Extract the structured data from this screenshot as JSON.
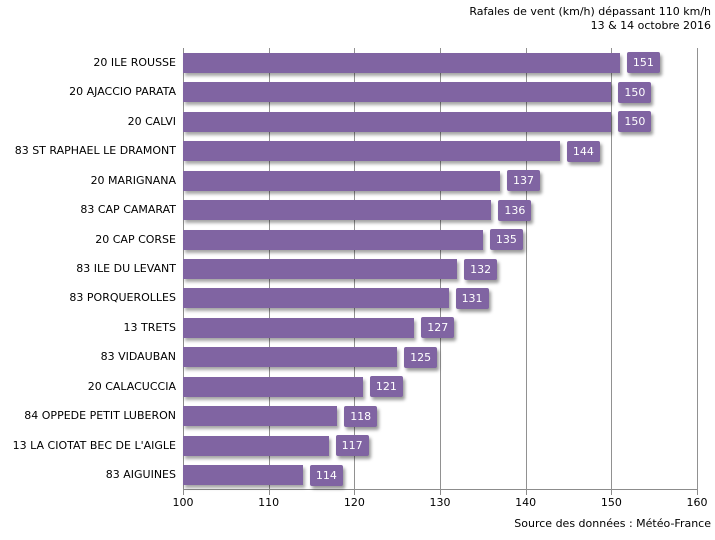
{
  "title": {
    "line1": "Rafales de vent (km/h) dépassant 110 km/h",
    "line2": "13 & 14 octobre 2016"
  },
  "source_note": "Source des données : Météo-France",
  "colors": {
    "bar": "#8064A2",
    "value_label_bg": "#8064A2",
    "value_label_text": "#FFFFFF",
    "gridline": "#919191",
    "axis_line": "#8C8C8C",
    "text": "#000000"
  },
  "chart_data": {
    "type": "bar",
    "orientation": "horizontal",
    "title": "Rafales de vent (km/h) dépassant 110 km/h",
    "subtitle": "13 & 14 octobre 2016",
    "xlabel": "",
    "ylabel": "",
    "xlim": [
      100,
      160
    ],
    "x_ticks": [
      100,
      110,
      120,
      130,
      140,
      150,
      160
    ],
    "grid": true,
    "legend": false,
    "categories": [
      "20 ILE ROUSSE",
      "20 AJACCIO PARATA",
      "20 CALVI",
      "83 ST RAPHAEL LE DRAMONT",
      "20 MARIGNANA",
      "83 CAP CAMARAT",
      "20 CAP CORSE",
      "83 ILE DU LEVANT",
      "83 PORQUEROLLES",
      "13 TRETS",
      "83 VIDAUBAN",
      "20 CALACUCCIA",
      "84 OPPEDE PETIT LUBERON",
      "13 LA CIOTAT BEC DE L'AIGLE",
      "83 AIGUINES"
    ],
    "values": [
      151,
      150,
      150,
      144,
      137,
      136,
      135,
      132,
      131,
      127,
      125,
      121,
      118,
      117,
      114
    ],
    "source": "Source des données : Météo-France"
  }
}
